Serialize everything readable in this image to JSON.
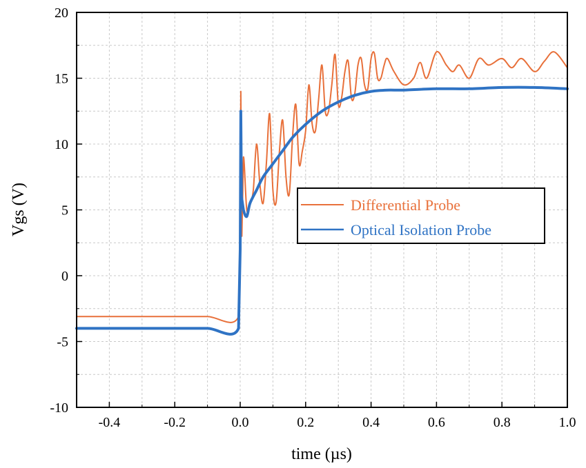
{
  "chart_data": {
    "type": "line",
    "title": "",
    "xlabel": "time (µs)",
    "ylabel": "Vgs (V)",
    "xlim": [
      -0.5,
      1.0
    ],
    "ylim": [
      -10,
      20
    ],
    "xticks": [
      -0.4,
      -0.2,
      0.0,
      0.2,
      0.4,
      0.6,
      0.8,
      1.0
    ],
    "xtick_labels": [
      "-0.4",
      "-0.2",
      "0.0",
      "0.2",
      "0.4",
      "0.6",
      "0.8",
      "1.0"
    ],
    "yticks": [
      -10,
      -5,
      0,
      5,
      10,
      15,
      20
    ],
    "ytick_labels": [
      "-10",
      "-5",
      "0",
      "5",
      "10",
      "15",
      "20"
    ],
    "grid": true,
    "legend_position": "center-right",
    "series": [
      {
        "name": "Differential Probe",
        "color": "#e8703a",
        "x": [
          -0.5,
          -0.4,
          -0.3,
          -0.2,
          -0.1,
          -0.005,
          0.0,
          0.002,
          0.005,
          0.01,
          0.02,
          0.03,
          0.04,
          0.05,
          0.06,
          0.07,
          0.08,
          0.09,
          0.1,
          0.11,
          0.12,
          0.13,
          0.14,
          0.15,
          0.16,
          0.17,
          0.18,
          0.19,
          0.2,
          0.21,
          0.22,
          0.23,
          0.24,
          0.25,
          0.26,
          0.27,
          0.28,
          0.29,
          0.3,
          0.31,
          0.32,
          0.33,
          0.34,
          0.35,
          0.36,
          0.37,
          0.38,
          0.39,
          0.4,
          0.41,
          0.42,
          0.43,
          0.44,
          0.45,
          0.47,
          0.5,
          0.53,
          0.55,
          0.57,
          0.6,
          0.63,
          0.65,
          0.67,
          0.7,
          0.73,
          0.76,
          0.8,
          0.83,
          0.86,
          0.9,
          0.93,
          0.96,
          1.0
        ],
        "y": [
          -3.1,
          -3.1,
          -3.1,
          -3.1,
          -3.1,
          -3.1,
          3.0,
          14.0,
          3.0,
          9.0,
          5.0,
          5.5,
          6.5,
          10.0,
          7.0,
          5.5,
          8.5,
          12.3,
          6.5,
          5.6,
          9.5,
          11.8,
          7.5,
          6.2,
          10.5,
          13.0,
          8.5,
          9.5,
          11.0,
          14.5,
          11.5,
          11.0,
          13.5,
          16.0,
          12.5,
          12.5,
          14.5,
          16.8,
          13.0,
          13.5,
          15.5,
          16.3,
          13.5,
          13.8,
          16.0,
          16.5,
          14.5,
          14.2,
          16.5,
          16.9,
          15.0,
          15.0,
          16.0,
          16.5,
          15.5,
          14.5,
          15.0,
          16.2,
          15.0,
          17.0,
          16.0,
          15.5,
          16.0,
          15.0,
          16.5,
          16.0,
          16.5,
          15.8,
          16.5,
          15.5,
          16.3,
          17.0,
          15.8
        ]
      },
      {
        "name": "Optical Isolation Probe",
        "color": "#2f73c4",
        "x": [
          -0.5,
          -0.4,
          -0.3,
          -0.2,
          -0.1,
          -0.005,
          0.0,
          0.002,
          0.004,
          0.01,
          0.02,
          0.03,
          0.05,
          0.07,
          0.1,
          0.13,
          0.16,
          0.2,
          0.25,
          0.3,
          0.35,
          0.4,
          0.45,
          0.5,
          0.6,
          0.7,
          0.8,
          0.9,
          1.0
        ],
        "y": [
          -4.0,
          -4.0,
          -4.0,
          -4.0,
          -4.0,
          -4.0,
          2.0,
          12.5,
          6.0,
          5.0,
          4.5,
          5.5,
          6.5,
          7.5,
          8.5,
          9.5,
          10.5,
          11.5,
          12.5,
          13.2,
          13.7,
          14.0,
          14.1,
          14.1,
          14.2,
          14.2,
          14.3,
          14.3,
          14.2
        ]
      }
    ]
  }
}
